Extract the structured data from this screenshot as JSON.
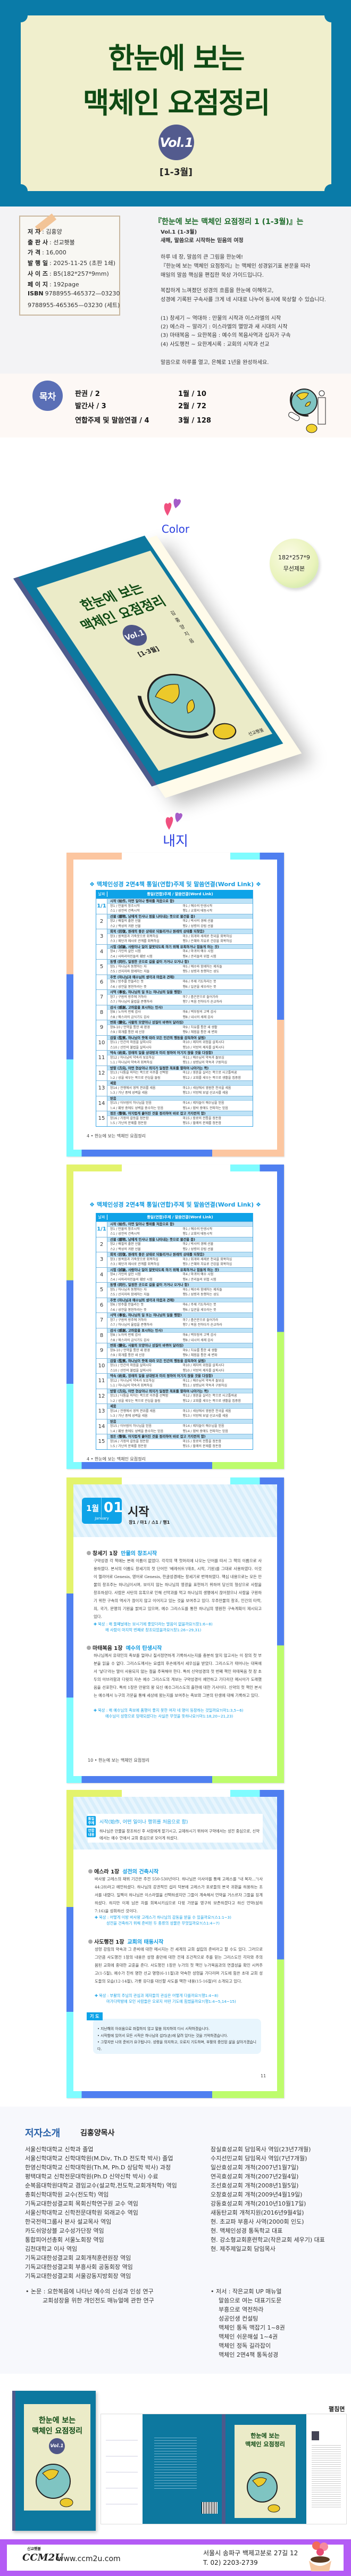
{
  "hero": {
    "title_line1": "한눈에 보는",
    "title_line2": "맥체인 요점정리",
    "volume": "Vol.1",
    "months": "[1-3월]"
  },
  "book_info": {
    "rows": [
      {
        "label": "저 자",
        "value": ": 김홍양"
      },
      {
        "label": "출 판 사",
        "value": ": 선교횃불"
      },
      {
        "label": "가 격",
        "value": ": 16,000"
      },
      {
        "label": "발 행 일",
        "value": ": 2025-11-25 (초판 1쇄)"
      },
      {
        "label": "사 이 즈",
        "value": ": B5(182*257*9mm)"
      },
      {
        "label": "페 이 지",
        "value": ": 192page"
      },
      {
        "label": "ISBN",
        "value": "9788955-465372—03230"
      },
      {
        "label": "",
        "value": "9788955-465365—03230 (세트)"
      }
    ]
  },
  "description": {
    "heading": "『한눈에 보는 맥체인 요점정리 1 (1-3월)』는",
    "vol_label": "Vol.1 (1-3월)",
    "subtitle": "새해, 말씀으로 시작하는 믿음의 여정",
    "para1": [
      "하루 네 장, 말씀의 큰 그림을 한눈에!",
      "『한눈에 보는 맥체인 요점정리』는 맥체인 성경읽기표 본문을 따라",
      "매일의 말씀 핵심을 편집한 묵상 가이드입니다."
    ],
    "para2": [
      "복잡하게 느껴졌던 성경의 흐름을 한눈에 이해하고,",
      "성경에 기록된 구속사를 크게 네 시대로 나누어 동시에 묵상할 수 있습니다."
    ],
    "eras": [
      "(1) 창세기 ~ 역대하 : 만물의 시작과 이스라엘의 시작",
      "(2) 에스라 ~ 말라기 : 이스라엘의 멸망과 새 시대의 시작",
      "(3) 마태복음 ~ 요한복음 : 예수의 복음사역과 십자가 구속",
      "(4) 사도행전 ~ 요한계시록 : 교회의 시작과 선교"
    ],
    "closing": "말씀으로 하루를 열고, 은혜로 1년을 완성하세요."
  },
  "toc": {
    "badge": "목차",
    "items": [
      "판권 / 2",
      "발간사 / 3",
      "연합주제 및 말씀연결 / 4",
      "1월 / 10",
      "2월 / 72",
      "3월 / 128"
    ]
  },
  "color_section": {
    "title": "Color",
    "size_badge": [
      "182*257*9",
      "무선제본"
    ],
    "cover": {
      "title1": "한눈에 보는",
      "title2": "맥체인 요점정리",
      "volume": "Vol.1",
      "months": "[1-3월]",
      "author": "김홍양 지음",
      "publisher": "선교횃불"
    }
  },
  "inner_section": {
    "title": "내지"
  },
  "contents_table": {
    "title": "❖ 맥체인성경 2면4책 통일(연합)주제 및 말씀연결(Word Link) ❖",
    "header_date": "날짜",
    "header_main": "통일(연합)주제 / 말씀연결(Word Link)",
    "footer": "4 • 한눈에 보는 맥체인 요점정리",
    "rows": [
      {
        "date": "1/1",
        "theme": "시작 (始作, 어떤 일이나 행위를 처음으로 함)",
        "a": "창1 / 만물의 창조시작",
        "b": "마1 / 예수의 탄생시작",
        "c": "스1 / 성전의 건축시작",
        "d": "행1 / 교회의 태동시작"
      },
      {
        "date": "2",
        "theme": "선물 (膳物, 남에게 인사나 정을 나타내는 뜻으로 물건을 줌)",
        "a": "창2 / 배필의 출현 선물",
        "b": "마2 / 박사의 경배 선물",
        "c": "스2 / 백성의 귀환 선물",
        "d": "행2 / 성령의 강림 선물"
      },
      {
        "date": "3",
        "theme": "회복 (回復, 원래의 좋은 상태로 되돌리거나 원래의 상태를 되찾음)",
        "a": "창3 / 원복음과 가죽옷으로 회복하심",
        "b": "마3 / 회개와 세례로 천국을 회복하심",
        "c": "스3 / 제단과 제사로 관계를 회복하심",
        "d": "행3 / 은혜와 치유로 건강을 회복하심"
      },
      {
        "date": "4",
        "theme": "시험 (試驗, 사람이나 일이 잘못되도록 하기 위해 유혹하거나 힘들게 하는 것)",
        "a": "창4 / 가인의 살인 시험",
        "b": "마4 / 마귀의 예수 시험",
        "c": "스4 / 사마리아인들의 훼방 시험",
        "d": "행4 / 관리들의 위협 시험"
      },
      {
        "date": "5",
        "theme": "동행 (同行, 일정한 곳으로 길을 같이 가거나 오거나 함)",
        "a": "창5 / 하나님과 동행하는 자",
        "b": "마5 / 예수와 함께하는 제자들",
        "c": "스5 / 선지자와 함께하는 자들",
        "d": "행5 / 성령과 동행하는 성도"
      },
      {
        "date": "6",
        "theme": "주뜻 (하나님과 예수님의 생각과 마음과 견해)",
        "a": "창6 / 방주를 만들라는 뜻",
        "b": "마6 / 주께 기도하라는 뜻",
        "c": "스6 / 성전을 봉헌하라는 뜻",
        "d": "행6 / 일꾼을 세우라는 뜻"
      },
      {
        "date": "7",
        "theme": "사역 (事役, 하나님의 일 또는 하나님의 일을 행함)",
        "a": "창7 / 구원의 방주에 거하라",
        "b": "마7 / 좁은문으로 들어가라",
        "c": "스7 / 하나님의 율법을 준행하라",
        "d": "행7 / 복음 전하다가 순교하라"
      },
      {
        "date": "8",
        "theme": "감사 (感謝, 고마움을 표시하는 인사)",
        "a": "창8 / 노아의 번제 감사",
        "b": "마8 / 백부장의 고백 감사",
        "c": "스8 / 에스라의 금식기도 감사",
        "d": "행8 / 내시의 세례 감사"
      },
      {
        "date": "9",
        "theme": "변화 (變化, 사물의 모양이나 성질이 바뀌어 달라짐)",
        "a": "창9-10 / 언약을 통한 새 환경",
        "b": "마9 / 치유를 통한 새 생활",
        "c": "스9 / 회개를 통한 새 신앙",
        "d": "행9 / 체험을 통한 새 변화"
      },
      {
        "date": "10",
        "theme": "감찰 (監察, 하나님이 뜻에 따라 모든 인간의 행동을 감독하여 살핌)",
        "a": "창11 / 인간의 마음을 살피시다",
        "b": "마10 / 제자의 위험을 살피시다",
        "c": "스10 / 선민의 불법을 살피시다",
        "d": "행10 / 이방의 제자를 살피시다"
      },
      {
        "date": "11",
        "theme": "약속 (約束, 장래의 일을 상대방과 미리 정하여 어기지 않을 것을 다짐함)",
        "a": "창12 / 하나님의 약속과 보호하심",
        "b": "마11 / 예수님의 약속과 돌보심",
        "c": "느1 / 하나님의 약속과 회복하심",
        "d": "행11 / 성령님의 약속과 구원하심"
      },
      {
        "date": "12",
        "theme": "방향 (方向, 어떤 현상이나 의지가 일정한 목표를 향하여 나아가는 쪽)",
        "a": "창13 / 다툼을 피하는 쪽으로 이주를 선택함",
        "b": "마12 / 영혼을 살리는 쪽으로 사고틀바꿈",
        "c": "느2 / 성을 세우는 쪽으로 관심을 돌림",
        "d": "행12 / 교회를 세우는 쪽으로 생활을 집중함"
      },
      {
        "date": "13",
        "theme": "세움",
        "a": "창14 / 전쟁에서 영적 권위를 세움",
        "b": "마13 / 세상에서 영원한 천국을 세움",
        "c": "느3 / 가난 중에 성벽을 세움",
        "d": "행13 / 이방에 보낼 선교사를 세움"
      },
      {
        "date": "14",
        "theme": "믿음",
        "a": "창15 / 아브람이 하나님을 믿음",
        "b": "마14 / 제자들이 예수님을 믿음",
        "c": "느4 / 훼방 중에도 성벽을 중수하는 믿음",
        "d": "행14 / 핍박 중에도 전파하는 믿음"
      },
      {
        "date": "15",
        "theme": "정돈 (整頓, 어지럽게 흩어진 것을 정리하여 바로 잡고 가지런히 함)",
        "a": "창16 / 가정의 갈등을 정돈함",
        "b": "마15 / 장로의 전통을 정돈함",
        "c": "느5 / 가난의 문제를 정돈함",
        "d": "행15 / 할례의 문제를 정돈함"
      }
    ]
  },
  "day_page": {
    "month": "1월",
    "day": "01",
    "month_en": "January",
    "theme": "시작",
    "refs": "창1 / 마1 / 스1 / 행1",
    "sections": [
      {
        "book": "창세기 1장",
        "subtitle": "만물의 창조시작",
        "body": "구약성경 각 책에는 본래 이름이 없었다. 각각의 책 첫머리에 나오는 단어를 따서 그 책의 이름으로 사용하였다. 본서의 이름도 창세기의 첫 단어인 '베레쉬트'(태초, 시작, 기원)를 그대로 사용하였다. 이것이 헬라어로 Genesis, 영어로 Genesis, 한글성경에는 창세기로 번역하였다. 핵심 내용으로는 모든 만물의 창조주는 하나님이시며, 보이지 않는 하나님의 영광을 표현하기 위하여 당신의 형상으로 사람을 창조하셨다. 사람은 사탄의 유혹으로 인해 선악과를 먹고 하나님의 생명에서 끊어졌으나 사람을 구원하기 위한 구속의 역사가 끊이지 않고 이어지고 있는 것을 보여주고 있다. 우주만물의 창조, 인간의 타락, 죄, 국가, 문명의 기원을 밝히고 있으며, 예수 그리스도를 통한 하나님의 영원한 구속계획이 제시되고 있다.",
        "meditation1": "✚ 묵상 : 왜 둘째날에는 보시기에 좋았더라는 말씀이 없을까요?(창1:6~8)",
        "meditation2": "왜 사람이 마지막 번째로 창조되었을까요?(창1:26~29,31)"
      },
      {
        "book": "마태복음 1장",
        "subtitle": "예수의 탄생시작",
        "body": "하나님께서 유대인의 족보를 얼마나 질서정연하게 기록하시는지를 충분히 알지 않고서는 이 장의 첫 부분을 읽을 수 없다. 그리스도께서는 요셉의 후손에게서 세우심을 받았다. 그리스도가 태어나는 대목에서 '낳다'라는 말이 사용되지 않는 점을 주목해야 한다. 특히 신약성경의 첫 번째 책인 마태복음 첫 장 초두의 아브라함과 다윗의 자손 예수 그리스도의 계보는 구약성경이 예언하고 기다리던 메시아가 도래했음을 선포한다. 특히 1장은 만왕의 왕 되신 예수그리스도의 출현에 대한 기사이다. 신약의 첫 책인 본서는 예수께서 누구의 가문을 통해 세상에 왔는지를 보여주는 족보와 그분의 탄생에 대해 기록하고 있다.",
        "meditation1": "✚ 묵상 : 왜 예수님의 족보에 품행이 좋지 못한 여자 네 명이 등장하는 것일까요?(마1:3,5~6)",
        "meditation2": "예수님이 성령으로 잉태되셨다는 사실은 무엇을 뜻하나요?(마1:18,20~21,23)"
      }
    ],
    "footer": "10 • 한눈에 보는 맥체인 요점정리"
  },
  "day_page2": {
    "unified_tag": "통일주제",
    "unified": "시작(始作, 어떤 일이나 행위를 처음으로 함)",
    "joint_tag": "연합내용",
    "joint": "하나님은 만물을 창조하신 후 사람에게 맡기시고, 교제하시기 위하여 구약에서는 성전 중심으로, 신약에서는 예수 안에서 교회 중심으로 모이게 하셨다.",
    "sections": [
      {
        "book": "에스라 1장",
        "subtitle": "성전의 건축시작",
        "body": "바사왕 고레스의 재위 기간은 주전 550-530년이다. 하나님은 이사야를 통해 고레스를 \"내 목자…\"(사 44:28)라고 예언하셨다. 하나님의 강권적인 섭리 덕분에 고레스가 포로들의 본국 귀환을 허용하는 조서를 내렸다. 일찍이 하나님은 이스라엘을 선택하셨지만 그들이 계속해서 언약을 거스르자 그들을 징계하셨다. 하지만 이제 남은 자를 회복시키심으로 다윗 가문을 영구히 보존하겠다고 하신 언약(삼하 7:16)을 성취하신 것이다.",
        "meditation1": "✚ 묵상 : 어떻게 이방 바사왕 고레스가 하나님의 감동을 받을 수 있을까요?(스1:1~3)",
        "meditation2": "성전을 건축하기 위해 준비된 두 종류의 성물은 무엇일까요?(스1:4~7)"
      },
      {
        "book": "사도행전 1장",
        "subtitle": "교회의 태동시작",
        "body": "성령 강림의 약속과 그 준비에 대한 메시지는 전 세계의 교회 설립의 준비라고 할 수도 있다. 그러므로 그만큼 사도행전 1장의 내용은 성령 충만에 대한 전제 조건적으로 주를 믿는 그리스도인 각자와 주의 몸된 교회에 중대한 교훈을 준다. 사도행전 1장은 누가의 첫 책인 누가복음과의 연결성을 확인 시켜주고(1-5절), 예수가 친히 명한 선교 명령(6-11절)과 약속한 성령을 기다리며 기도에 힘쓴 초대 교회 성도들의 모습(12-14절), 가룟 유다를 대신할 사도를 택한 내용(15-16절)이 소개되고 있다.",
        "meditation1": "✚ 묵상 : 부활의 주님의 관심과 제자들의 관심은 어떻게 다를까요?(행1:4~8)",
        "meditation2": "마가다락방에 모인 사람들은 오로지 어떤 기도에 힘썼을까요?(행1:4~5,14~15)"
      }
    ],
    "prayer_label": "기 도",
    "prayers": [
      "• 지난해의 아쉬움으로 좌절하지 않고 말씀 의지하여 다시 시작하겠습니다.",
      "• 시작함에 있어서 모든 시작은 하나님의 섭리(손)에 달려 있다는 것을 기억하겠습니다.",
      "• 그렇지만 나의 준비가 요구됩니다. 성령을 의지하고, 오로지 기도하며, 부활의 증인된 삶을 살아가겠습니다."
    ],
    "page_number": "11"
  },
  "author": {
    "label": "저자소개",
    "name": "김홍양목사",
    "left": [
      "서울신학대학교 신학과 졸업",
      "서울신학대학교 신학대학원(M.Div, Th.D 전도학 박사) 졸업",
      "한영신학대학교 신학대학원(Th.M, Ph.D 상담학 박사) 과정",
      "평택대학교 신학전문대학원(Ph.D 신약신학 박사) 수료",
      "순복음대학원대학교 겸임교수(설교학,전도학,교회개척학) 역임",
      "총회신학대학원 교수(전도학) 역임",
      "기독교대한성결교회 목회신학연구원 교수 역임",
      "서울신학대학교 신학전문대학원 외래교수 역임",
      "한국전력그룹사 본사 설교목사 역임",
      "카도쉬앙상블 교수성가단장 역임",
      "통합피어선총회 서울노회장 역임",
      "김천대학교 이사 역임",
      "기독교대한성결교회 교회개척훈련원장 역임",
      "기독교대한성결교회 부흥사회 공동회장 역임",
      "기독교대한성결교회 서울강동지방회장 역임"
    ],
    "right": [
      "잠실효성교회 담임목사 역임(23년7개월)",
      "수지선민교회 담임목사 역임(7년7개월)",
      "일산효성교회 개척(2007년1월7일)",
      "연곡효성교회 개척(2007년2월4일)",
      "조선효성교회 개척(2008년1월5일)",
      "오창효성교회 개척(2009년4월19일)",
      "강동효성교회 개척(2010년10월17일)",
      "새동탄교회 개척지원(2016년9월4일)",
      "현. 초교파 부흥사 사역(2000회 인도)",
      "현. 맥체인성경 통독학교 대표",
      "현. 강소형교회훈련학교(작은교회 세우기) 대표",
      "현. 제주제일교회 담임목사"
    ],
    "papers_label": "•  논문 : ",
    "papers": [
      "요한복음에 나타난 예수의 신성과 인성 연구",
      "교회성장을 위한 개인전도 매뉴얼에 관한 연구"
    ],
    "books_label": "•  저서 : ",
    "books": [
      "작은교회 UP 매뉴얼",
      "말씀으로 여는 대표기도문",
      "부흥으로 역전하라",
      "성공인생 컨설팅",
      "맥체인 통독 맥잡기 1~8권",
      "맥체인 쉬운해설 1~4권",
      "맥체인 정독 길라잡이",
      "맥체인 2면4책 통독성경"
    ]
  },
  "spread": {
    "label": "펼침면"
  },
  "footer": {
    "logo_small": "신교횃불",
    "logo": "CCM2U",
    "url": "www.ccm2u.com",
    "address": "서울시 송파구 백제고분로 27길 12",
    "phone": "T. 02) 2203-2739"
  },
  "colors": {
    "hero_blue": "#0a7ba8",
    "cream": "#f0efcd",
    "title_green": "#0f4a14",
    "accent_blue": "#0ea3e8",
    "footer_purple": "#b45cf5"
  }
}
